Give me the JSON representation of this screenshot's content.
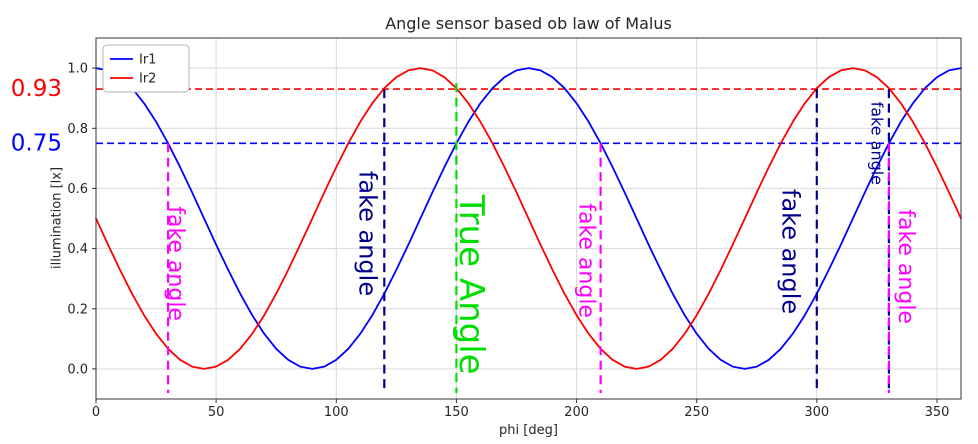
{
  "chart_data": {
    "type": "line",
    "title": "Angle sensor based ob law of Malus",
    "xlabel": "phi [deg]",
    "ylabel": "illumination [lx]",
    "xlim": [
      0,
      360
    ],
    "ylim": [
      -0.1,
      1.1
    ],
    "xticks": [
      0,
      50,
      100,
      150,
      200,
      250,
      300,
      350
    ],
    "yticks": [
      0.0,
      0.2,
      0.4,
      0.6,
      0.8,
      1.0
    ],
    "grid": true,
    "legend": {
      "position": "upper left",
      "entries": [
        {
          "label": "Ir1",
          "color": "#0000ff"
        },
        {
          "label": "Ir2",
          "color": "#ff0000"
        }
      ]
    },
    "x": [
      0,
      5,
      10,
      15,
      20,
      25,
      30,
      35,
      40,
      45,
      50,
      55,
      60,
      65,
      70,
      75,
      80,
      85,
      90,
      95,
      100,
      105,
      110,
      115,
      120,
      125,
      130,
      135,
      140,
      145,
      150,
      155,
      160,
      165,
      170,
      175,
      180,
      185,
      190,
      195,
      200,
      205,
      210,
      215,
      220,
      225,
      230,
      235,
      240,
      245,
      250,
      255,
      260,
      265,
      270,
      275,
      280,
      285,
      290,
      295,
      300,
      305,
      310,
      315,
      320,
      325,
      330,
      335,
      340,
      345,
      350,
      355,
      360
    ],
    "series": [
      {
        "name": "Ir1",
        "color": "#0000ff",
        "values": [
          1,
          0.9924,
          0.9698,
          0.933,
          0.883,
          0.8214,
          0.75,
          0.671,
          0.5868,
          0.5,
          0.4132,
          0.329,
          0.25,
          0.1786,
          0.117,
          0.067,
          0.0302,
          0.0076,
          0,
          0.0076,
          0.0302,
          0.067,
          0.117,
          0.1786,
          0.25,
          0.329,
          0.4132,
          0.5,
          0.5868,
          0.671,
          0.75,
          0.8214,
          0.883,
          0.933,
          0.9698,
          0.9924,
          1,
          0.9924,
          0.9698,
          0.933,
          0.883,
          0.8214,
          0.75,
          0.671,
          0.5868,
          0.5,
          0.4132,
          0.329,
          0.25,
          0.1786,
          0.117,
          0.067,
          0.0302,
          0.0076,
          0,
          0.0076,
          0.0302,
          0.067,
          0.117,
          0.1786,
          0.25,
          0.329,
          0.4132,
          0.5,
          0.5868,
          0.671,
          0.75,
          0.8214,
          0.883,
          0.933,
          0.9698,
          0.9924,
          1
        ]
      },
      {
        "name": "Ir2",
        "color": "#ff0000",
        "values": [
          0.5,
          0.4132,
          0.329,
          0.25,
          0.1786,
          0.117,
          0.067,
          0.0302,
          0.0076,
          0,
          0.0076,
          0.0302,
          0.067,
          0.117,
          0.1786,
          0.25,
          0.329,
          0.4132,
          0.5,
          0.5868,
          0.671,
          0.75,
          0.8214,
          0.883,
          0.933,
          0.9698,
          0.9924,
          1,
          0.9924,
          0.9698,
          0.933,
          0.883,
          0.8214,
          0.75,
          0.671,
          0.5868,
          0.5,
          0.4132,
          0.329,
          0.25,
          0.1786,
          0.117,
          0.067,
          0.0302,
          0.0076,
          0,
          0.0076,
          0.0302,
          0.067,
          0.117,
          0.1786,
          0.25,
          0.329,
          0.4132,
          0.5,
          0.5868,
          0.671,
          0.75,
          0.8214,
          0.883,
          0.933,
          0.9698,
          0.9924,
          1,
          0.9924,
          0.9698,
          0.933,
          0.883,
          0.8214,
          0.75,
          0.671,
          0.5868,
          0.5
        ]
      }
    ],
    "hlines": [
      {
        "y": 0.93,
        "color": "#ff0000",
        "label": "0.93"
      },
      {
        "y": 0.75,
        "color": "#0000ff",
        "label": "0.75"
      }
    ],
    "vlines": [
      {
        "x": 30,
        "color": "#ff00ff",
        "y_top": 0.75,
        "y_bottom": -0.08,
        "text": "fake angle",
        "text_x": 33,
        "text_y": 0.35,
        "font_size": 22
      },
      {
        "x": 120,
        "color": "#00008b",
        "y_top": 0.93,
        "y_bottom": -0.08,
        "text": "fake angle",
        "text_x": 113,
        "text_y": 0.45,
        "font_size": 24
      },
      {
        "x": 150,
        "color": "#00dd00",
        "y_top": 0.95,
        "y_bottom": -0.08,
        "text": "True Angle",
        "text_x": 156,
        "text_y": 0.28,
        "font_size": 34
      },
      {
        "x": 210,
        "color": "#ff00ff",
        "y_top": 0.75,
        "y_bottom": -0.08,
        "text": "fake angle",
        "text_x": 204,
        "text_y": 0.36,
        "font_size": 22
      },
      {
        "x": 300,
        "color": "#00008b",
        "y_top": 0.93,
        "y_bottom": -0.08,
        "text": "fake angle",
        "text_x": 289,
        "text_y": 0.39,
        "font_size": 24
      },
      {
        "x": 330,
        "color": "#00008b",
        "y_top": 0.93,
        "y_bottom": -0.08,
        "text": "fake angle",
        "text_x": 325,
        "text_y": 0.75,
        "font_size": 16
      },
      {
        "x": 330,
        "color": "#ff00ff",
        "y_top": 0.75,
        "y_bottom": -0.08,
        "text": "fake angle",
        "text_x": 337,
        "text_y": 0.34,
        "font_size": 22
      }
    ]
  }
}
